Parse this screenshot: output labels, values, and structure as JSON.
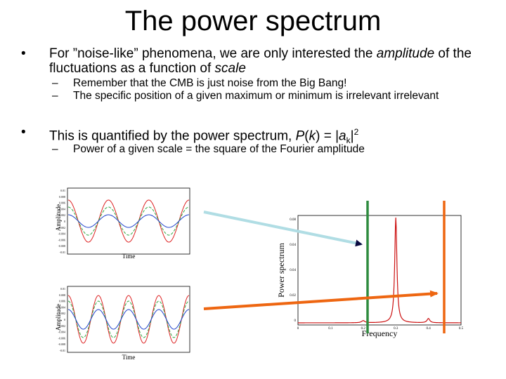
{
  "slide": {
    "title": "The power spectrum",
    "bullet1": {
      "pre": "For ”noise-like” phenomena, we are only interested the ",
      "em1": "amplitude",
      "mid": " of the fluctuations as a function of ",
      "em2": "scale"
    },
    "sub1": "Remember that the CMB is just noise from the Big Bang!",
    "sub2": "The specific position of a given maximum or minimum is irrelevant irrelevant",
    "bullet2": {
      "pre": "This is quantified by the power spectrum,  ",
      "P": "P",
      "open": "(",
      "k": "k",
      "close": ") = |",
      "a": "a",
      "sub_k": "k",
      "pipe": "|",
      "sup": "2"
    },
    "sub3": "Power of a given scale = the square of the Fourier amplitude",
    "bullet_char": "•",
    "dash_char": "–"
  },
  "plot_top": {
    "ylabel": "Amplitude",
    "xlabel": "Time",
    "yticks": [
      "0.01",
      "0.008",
      "0.006",
      "0.004",
      "0.002",
      "0",
      "-0.002",
      "-0.004",
      "-0.006",
      "-0.008",
      "-0.01"
    ]
  },
  "plot_bottom": {
    "ylabel": "Amplitude",
    "xlabel": "Time",
    "yticks": [
      "0.01",
      "0.008",
      "0.006",
      "0.004",
      "0.002",
      "0",
      "-0.002",
      "-0.004",
      "-0.006",
      "-0.008",
      "-0.01"
    ]
  },
  "spectrum": {
    "ylabel": "Power spectrum",
    "xlabel": "Frequency",
    "yticks": [
      "0.08",
      "0.04",
      "0.04",
      "0.02",
      "0"
    ],
    "xticks": [
      "0",
      "0.1",
      "0.2",
      "0.3",
      "0.4",
      "0.5"
    ]
  },
  "colors": {
    "wave_red": "#dd2222",
    "wave_green": "#33aa44",
    "wave_blue": "#2244cc",
    "marker_green": "#2e8b3e",
    "marker_orange": "#ee6611",
    "arrow_lightblue": "#b0dde4",
    "arrow_orange": "#ee6611",
    "spectrum_red": "#cc1111"
  }
}
